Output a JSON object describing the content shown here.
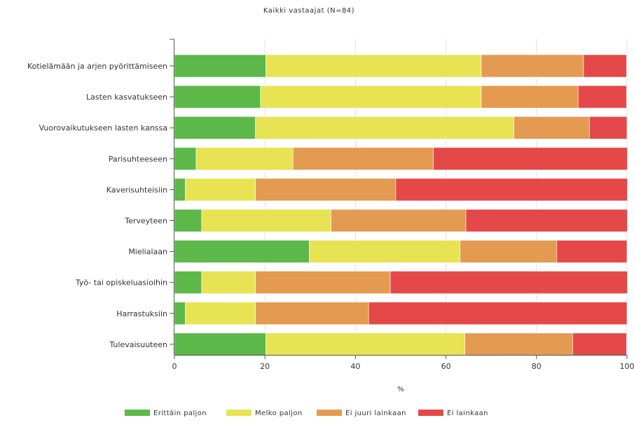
{
  "chart_data": {
    "type": "bar",
    "orientation": "horizontal",
    "stacked": true,
    "title": "Kaikki vastaajat (N=84)",
    "xlabel": "%",
    "ylabel": "",
    "xlim": [
      0,
      100
    ],
    "x_ticks": [
      "0",
      "20",
      "40",
      "60",
      "80",
      "100"
    ],
    "grid": true,
    "legend_position": "bottom",
    "categories": [
      "Kotielämään ja arjen pyörittämiseen",
      "Lasten kasvatukseen",
      "Vuorovaikutukseen lasten kanssa",
      "Parisuhteeseen",
      "Kaverisuhteisiin",
      "Terveyteen",
      "Mielialaan",
      "Työ- tai opiskeluasioihin",
      "Harrastuksiin",
      "Tulevaisuuteen"
    ],
    "series": [
      {
        "name": "Erittäin paljon",
        "color": "#5cb848",
        "values": [
          20.2,
          19.0,
          17.9,
          4.8,
          2.4,
          6.0,
          29.8,
          6.0,
          2.4,
          20.2
        ]
      },
      {
        "name": "Melko paljon",
        "color": "#e8e352",
        "values": [
          47.6,
          48.8,
          57.1,
          21.4,
          15.5,
          28.6,
          33.3,
          11.9,
          15.5,
          44.0
        ]
      },
      {
        "name": "Ei juuri lainkaan",
        "color": "#e59a52",
        "values": [
          22.6,
          21.4,
          16.7,
          31.0,
          31.0,
          29.8,
          21.4,
          29.8,
          25.0,
          23.8
        ]
      },
      {
        "name": "Ei lainkaan",
        "color": "#e54848",
        "values": [
          9.5,
          10.7,
          8.3,
          42.9,
          51.2,
          35.7,
          15.5,
          52.4,
          57.1,
          11.9
        ]
      }
    ]
  }
}
